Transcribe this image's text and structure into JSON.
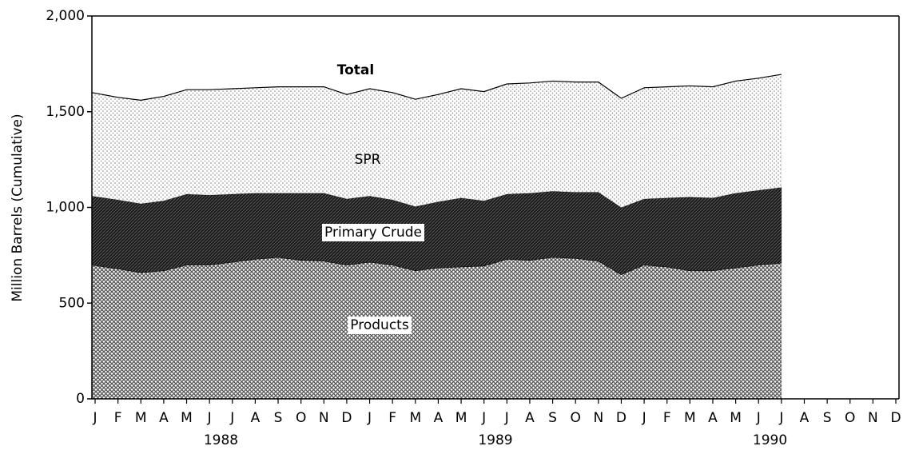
{
  "chart_data": {
    "type": "stacked_area",
    "y_label": "Million Barrels (Cumulative)",
    "annotation": "Total",
    "years": [
      "1988",
      "1989",
      "1990"
    ],
    "categories": [
      "J",
      "F",
      "M",
      "A",
      "M",
      "J",
      "J",
      "A",
      "S",
      "O",
      "N",
      "D",
      "J",
      "F",
      "M",
      "A",
      "M",
      "J",
      "J",
      "A",
      "S",
      "O",
      "N",
      "D",
      "J",
      "F",
      "M",
      "A",
      "M",
      "J",
      "J",
      "A",
      "S",
      "O",
      "N",
      "D"
    ],
    "series": [
      {
        "name": "Products",
        "color": "#555555",
        "values": [
          700,
          680,
          660,
          670,
          700,
          700,
          715,
          730,
          740,
          725,
          720,
          700,
          715,
          700,
          670,
          685,
          690,
          695,
          730,
          725,
          740,
          735,
          720,
          650,
          700,
          690,
          670,
          670,
          685,
          700,
          710,
          null,
          null,
          null,
          null,
          null
        ]
      },
      {
        "name": "Primary Crude",
        "color": "#1a1a1a",
        "values": [
          360,
          360,
          360,
          365,
          370,
          365,
          355,
          345,
          335,
          350,
          355,
          345,
          345,
          340,
          335,
          345,
          360,
          340,
          340,
          350,
          345,
          345,
          360,
          350,
          345,
          360,
          385,
          380,
          390,
          390,
          395,
          null,
          null,
          null,
          null,
          null
        ]
      },
      {
        "name": "SPR",
        "color": "#c8c8c8",
        "values": [
          540,
          535,
          540,
          545,
          545,
          550,
          550,
          550,
          555,
          555,
          555,
          545,
          560,
          560,
          560,
          560,
          570,
          570,
          575,
          575,
          575,
          575,
          575,
          570,
          580,
          580,
          580,
          580,
          585,
          585,
          590,
          null,
          null,
          null,
          null,
          null
        ]
      }
    ],
    "ylim": [
      0,
      2000
    ],
    "yticks": [
      0,
      500,
      {
        "value": 1000,
        "label": "1,000"
      },
      {
        "value": 1500,
        "label": "1,500"
      },
      {
        "value": 2000,
        "label": "2,000"
      }
    ]
  }
}
